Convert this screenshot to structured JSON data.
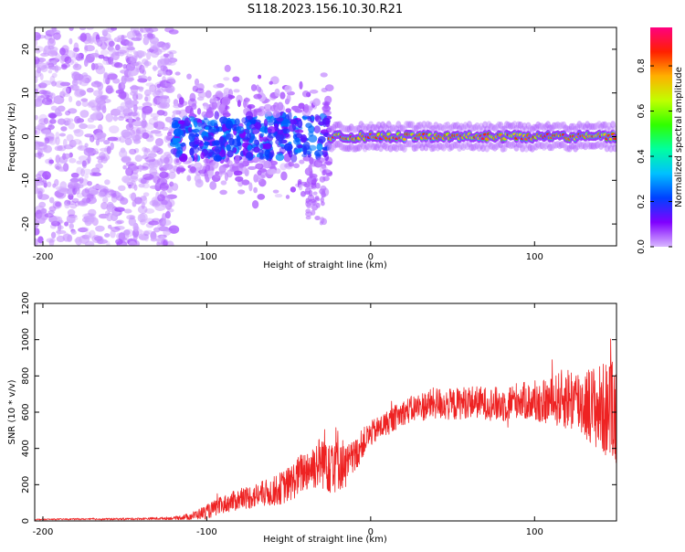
{
  "figure": {
    "title": "S118.2023.156.10.30.R21"
  },
  "chart_data": [
    {
      "type": "heatmap",
      "xlabel": "Height of straight line (km)",
      "ylabel": "Frequency (Hz)",
      "xlim": [
        -205,
        150
      ],
      "ylim": [
        -25,
        25
      ],
      "xticks": [
        -200,
        -100,
        0,
        100
      ],
      "yticks": [
        -20,
        -10,
        0,
        10,
        20
      ],
      "colorbar": {
        "label": "Normalized spectral amplitude",
        "range": [
          0,
          0.97
        ],
        "ticks": [
          0.0,
          0.2,
          0.4,
          0.6,
          0.8
        ],
        "colormap": [
          "#d9b8ff",
          "#8000ff",
          "#0040ff",
          "#00c0ff",
          "#00ffa0",
          "#30ff00",
          "#c0ff00",
          "#ffb000",
          "#ff2000",
          "#ff0080"
        ]
      },
      "features": [
        {
          "x_range": [
            -205,
            -120
          ],
          "freq_range": [
            -25,
            25
          ],
          "amplitude": 0.05
        },
        {
          "x_range": [
            -120,
            -25
          ],
          "freq_range": [
            -12,
            11
          ],
          "amplitude": 0.15
        },
        {
          "x_range": [
            -25,
            150
          ],
          "freq": 0,
          "amplitude": 0.85
        }
      ]
    },
    {
      "type": "line",
      "xlabel": "Height of straight line (km)",
      "ylabel": "SNR (10 * v/v)",
      "xlim": [
        -205,
        150
      ],
      "ylim": [
        0,
        1200
      ],
      "xticks": [
        -200,
        -100,
        0,
        100
      ],
      "yticks": [
        0,
        200,
        400,
        600,
        800,
        1000,
        1200
      ],
      "series": [
        {
          "color": "#ee2222",
          "x": [
            -205,
            -180,
            -160,
            -140,
            -120,
            -110,
            -100,
            -90,
            -80,
            -70,
            -60,
            -50,
            -40,
            -30,
            -25,
            -20,
            -15,
            -10,
            -5,
            0,
            10,
            20,
            30,
            40,
            50,
            60,
            70,
            80,
            90,
            100,
            110,
            120,
            130,
            140,
            150
          ],
          "y": [
            8,
            10,
            10,
            12,
            15,
            25,
            50,
            90,
            120,
            140,
            160,
            200,
            280,
            330,
            360,
            340,
            300,
            350,
            430,
            480,
            540,
            600,
            630,
            650,
            640,
            660,
            650,
            640,
            670,
            650,
            660,
            680,
            650,
            620,
            600
          ],
          "spread": [
            3,
            4,
            5,
            6,
            8,
            20,
            40,
            50,
            60,
            70,
            80,
            100,
            120,
            150,
            220,
            180,
            120,
            100,
            80,
            70,
            70,
            70,
            80,
            90,
            90,
            90,
            90,
            100,
            100,
            110,
            130,
            180,
            200,
            250,
            300
          ]
        }
      ]
    }
  ]
}
